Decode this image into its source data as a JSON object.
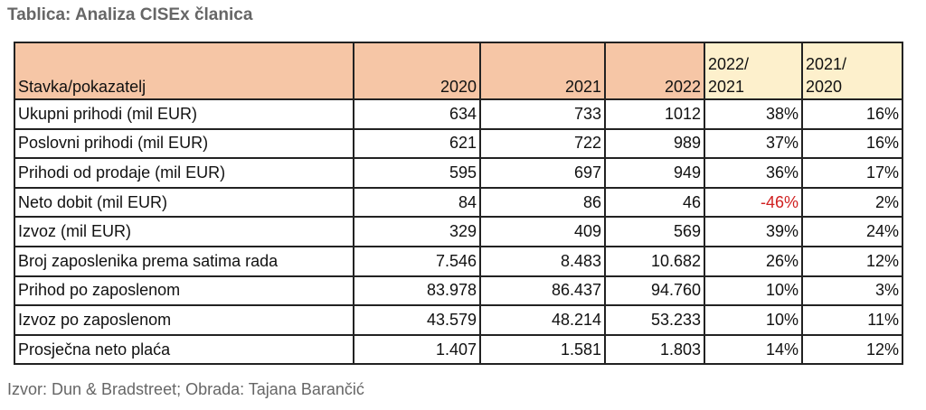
{
  "title": "Tablica: Analiza CISEx članica",
  "headers": [
    "Stavka/pokazatelj",
    "2020",
    "2021",
    "2022",
    "2022/\n2021",
    "2021/\n2020"
  ],
  "rows": [
    [
      "Ukupni prihodi (mil EUR)",
      "634",
      "733",
      "1012",
      "38%",
      "16%"
    ],
    [
      "Poslovni prihodi (mil EUR)",
      "621",
      "722",
      "989",
      "37%",
      "16%"
    ],
    [
      "Prihodi od prodaje (mil EUR)",
      "595",
      "697",
      "949",
      "36%",
      "17%"
    ],
    [
      "Neto dobit (mil EUR)",
      "84",
      "86",
      "46",
      "-46%",
      "2%"
    ],
    [
      "Izvoz (mil EUR)",
      "329",
      "409",
      "569",
      "39%",
      "24%"
    ],
    [
      "Broj zaposlenika prema satima rada",
      "7.546",
      "8.483",
      "10.682",
      "26%",
      "12%"
    ],
    [
      "Prihod po zaposlenom",
      "83.978",
      "86.437",
      "94.760",
      "10%",
      "3%"
    ],
    [
      "Izvoz po zaposlenom",
      "43.579",
      "48.214",
      "53.233",
      "10%",
      "11%"
    ],
    [
      "Prosječna neto plaća",
      "1.407",
      "1.581",
      "1.803",
      "14%",
      "12%"
    ]
  ],
  "colors": {
    "header_years": "#f6c6a6",
    "header_ratios": "#fdf0cc",
    "negative": "#d02020"
  },
  "source": "Izvor: Dun & Bradstreet; Obrada: Tajana Barančić"
}
